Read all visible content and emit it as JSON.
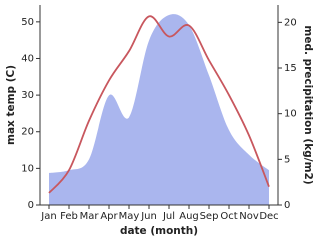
{
  "chart_data": {
    "type": "line",
    "categories": [
      "Jan",
      "Feb",
      "Mar",
      "Apr",
      "May",
      "Jun",
      "Jul",
      "Aug",
      "Sep",
      "Oct",
      "Nov",
      "Dec"
    ],
    "xlabel": "date (month)",
    "ylabel": "max temp (C)",
    "y2label": "med. precipitation (kg/m2)",
    "series": [
      {
        "name": "med. precipitation (kg/m2)",
        "type": "area",
        "axis": "y2",
        "color": "#aab6ee",
        "values": [
          3.5,
          3.8,
          5,
          12,
          9.6,
          18,
          20.8,
          19.7,
          14.2,
          8.2,
          5.5,
          3.8
        ]
      },
      {
        "name": "max temp (C)",
        "type": "line",
        "axis": "y",
        "color": "#c8575e",
        "values": [
          3.3,
          9.5,
          23,
          34,
          42,
          51.5,
          46,
          49,
          39.5,
          30,
          19,
          5
        ]
      }
    ],
    "ylim": [
      0,
      54.6
    ],
    "yticks": [
      0,
      10,
      20,
      30,
      40,
      50
    ],
    "y2lim": [
      0,
      21.9
    ],
    "y2ticks": [
      0,
      5,
      10,
      15,
      20
    ]
  }
}
